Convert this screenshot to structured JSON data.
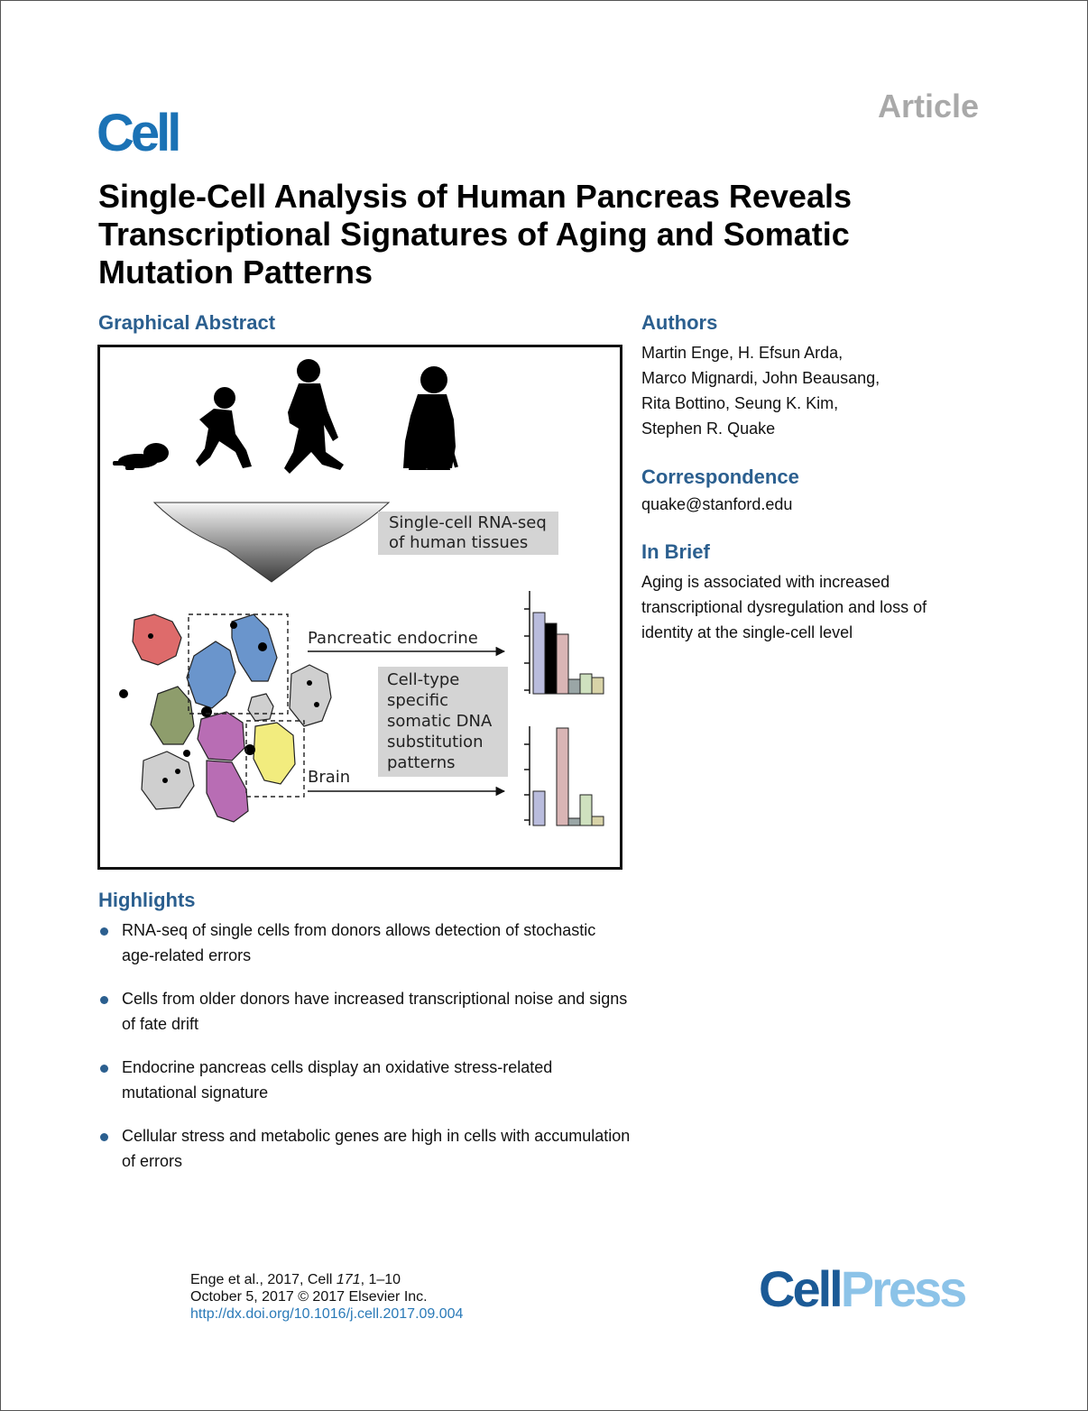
{
  "header": {
    "article_label": "Article",
    "journal_logo": "Cell",
    "title": "Single-Cell Analysis of Human Pancreas Reveals Transcriptional Signatures of Aging and Somatic Mutation Patterns"
  },
  "graphical_abstract": {
    "heading": "Graphical Abstract",
    "method_label_line1": "Single-cell RNA-seq",
    "method_label_line2": "of human tissues",
    "arrow_label_1": "Pancreatic endocrine",
    "arrow_label_2": "Brain",
    "celltype_lines": [
      "Cell-type",
      "specific",
      "somatic DNA",
      "substitution",
      "patterns"
    ],
    "colors": {
      "purple": "#b86db4",
      "blue": "#6a95cc",
      "green": "#8e9d6c",
      "red": "#de6b6b",
      "yellow": "#f2ec7e",
      "gray": "#cfcfcf",
      "bar_blue": "#b9bcdd",
      "bar_pink": "#d9b5b5",
      "bar_gray": "#9aa6a6",
      "bar_green": "#cfe1bf"
    }
  },
  "authors": {
    "heading": "Authors",
    "lines": [
      "Martin Enge, H. Efsun Arda,",
      "Marco Mignardi, John Beausang,",
      "Rita Bottino, Seung K. Kim,",
      "Stephen R. Quake"
    ]
  },
  "correspondence": {
    "heading": "Correspondence",
    "email": "quake@stanford.edu"
  },
  "in_brief": {
    "heading": "In Brief",
    "lines": [
      "Aging is associated with increased",
      "transcriptional dysregulation and loss of",
      "identity at the single-cell level"
    ]
  },
  "highlights": {
    "heading": "Highlights",
    "items": [
      "RNA-seq of single cells from donors allows detection of stochastic age-related errors",
      "Cells from older donors have increased transcriptional noise and signs of fate drift",
      "Endocrine pancreas cells display an oxidative stress-related mutational signature",
      "Cellular stress and metabolic genes are high in cells with accumulation of errors"
    ]
  },
  "citation": {
    "line1_prefix": "Enge et al., 2017, Cell ",
    "volume": "171",
    "line1_suffix": ", 1–10",
    "line2": "October 5, 2017 © 2017 Elsevier Inc.",
    "doi": "http://dx.doi.org/10.1016/j.cell.2017.09.004"
  },
  "publisher_logo": {
    "part1": "Cell",
    "part2": "Press"
  }
}
